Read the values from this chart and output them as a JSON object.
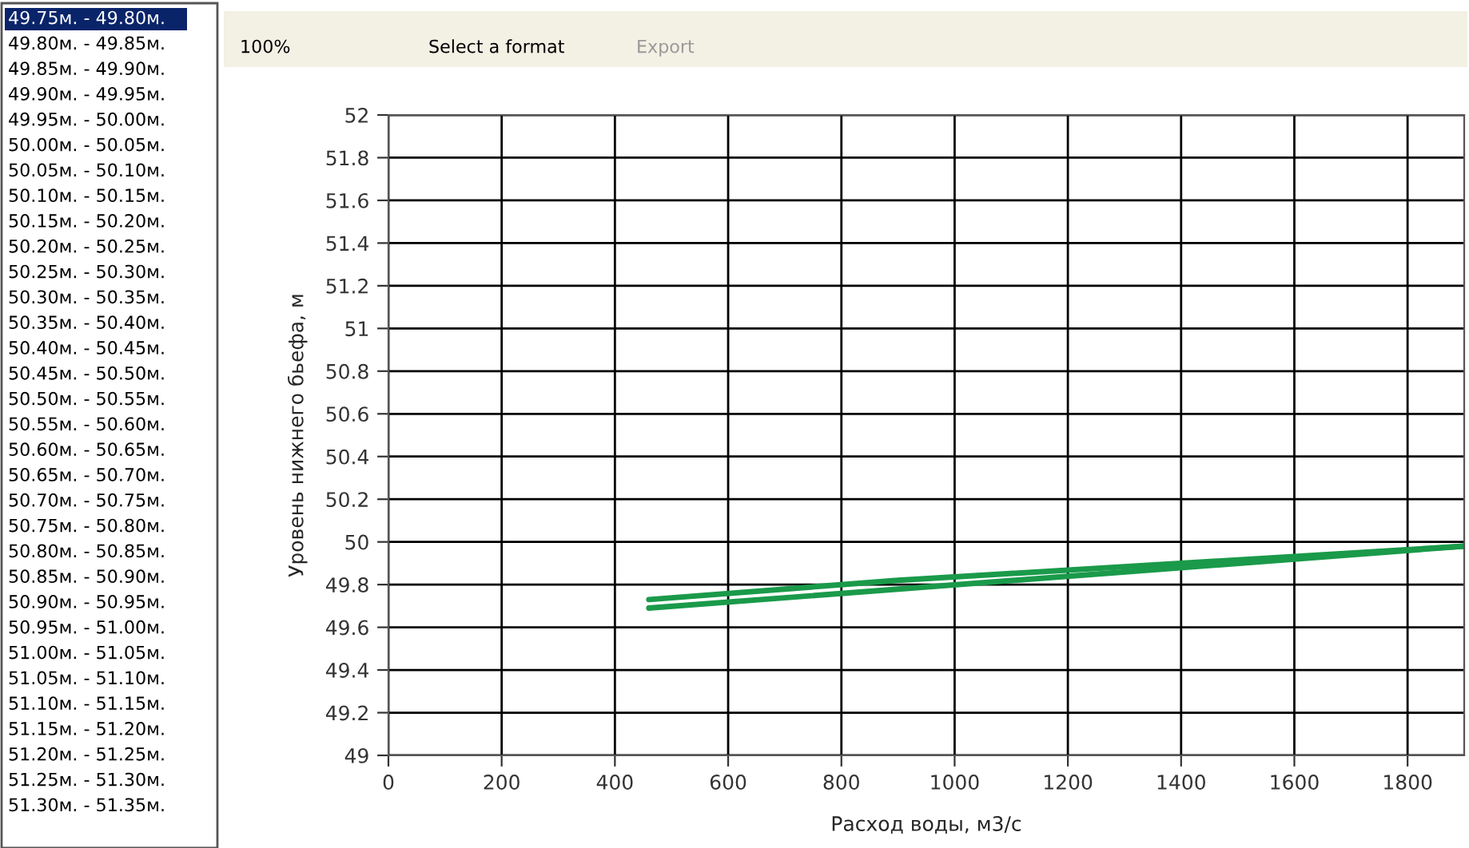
{
  "chart_data": {
    "type": "line",
    "xlabel": "Расход воды, м3/с",
    "ylabel": "Уровень нижнего бьефа, м",
    "series": [
      {
        "color": "#1a9a4a",
        "x": [
          460,
          900,
          1900
        ],
        "values": [
          49.73,
          49.82,
          49.98
        ]
      },
      {
        "color": "#1a9a4a",
        "x": [
          460,
          1900
        ],
        "values": [
          49.69,
          49.98
        ]
      }
    ],
    "xlim": [
      0,
      1900
    ],
    "xticks": [
      0,
      200,
      400,
      600,
      800,
      1000,
      1200,
      1400,
      1600,
      1800
    ],
    "ylim": [
      49,
      52
    ],
    "yticks": [
      49,
      49.2,
      49.4,
      49.6,
      49.8,
      50,
      50.2,
      50.4,
      50.6,
      50.8,
      51,
      51.2,
      51.4,
      51.6,
      51.8,
      52
    ],
    "grid": true,
    "marker": "none",
    "line_style": "solid",
    "annotations": [
      "49.75м. - 49.80м.",
      "49.80м. - 49.85м.",
      "49.85м. - 49.90м.",
      "49.90м. - 49.95м.",
      "49.95м. - 50.00м.",
      "50.00м. - 50.05м.",
      "50.05м. - 50.10м.",
      "50.10м. - 50.15м.",
      "50.15м. - 50.20м.",
      "50.20м. - 50.25м.",
      "50.25м. - 50.30м.",
      "50.30м. - 50.35м.",
      "50.35м. - 50.40м.",
      "50.40м. - 50.45м.",
      "50.45м. - 50.50м.",
      "50.50м. - 50.55м.",
      "50.55м. - 50.60м.",
      "50.60м. - 50.65м.",
      "50.65м. - 50.70м.",
      "50.70м. - 50.75м.",
      "50.75м. - 50.80м.",
      "50.80м. - 50.85м.",
      "50.85м. - 50.90м.",
      "50.90м. - 50.95м.",
      "50.95м. - 51.00м.",
      "51.00м. - 51.05м.",
      "51.05м. - 51.10м.",
      "51.10м. - 51.15м.",
      "51.15м. - 51.20м.",
      "51.20м. - 51.25м.",
      "51.25м. - 51.30м.",
      "51.30м. - 51.35м.",
      "100%",
      "Select a format",
      "Export"
    ]
  }
}
